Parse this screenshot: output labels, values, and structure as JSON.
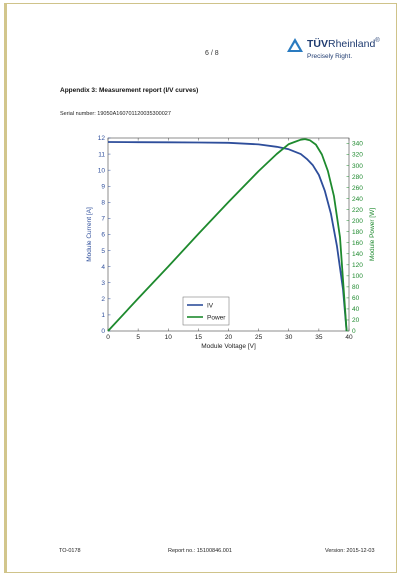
{
  "header": {
    "page_number": "6 / 8",
    "logo": {
      "brand_bold": "TÜV",
      "brand_rest": "Rheinland",
      "reg": "®",
      "tagline": "Precisely Right."
    }
  },
  "heading": "Appendix 3: Measurement report (I/V curves)",
  "serial": "Serial number: 19050A160701120035300027",
  "colors": {
    "iv": "#2e4e9b",
    "power": "#1e8a2e",
    "border": "#cfc38a",
    "logo": "#1f3b70"
  },
  "chart_data": {
    "type": "line",
    "xlabel": "Module Voltage [V]",
    "ylabel": "Module Current [A]",
    "y2label": "Module Power [W]",
    "xlim": [
      0,
      40
    ],
    "ylim": [
      0,
      12
    ],
    "y2lim": [
      0,
      350
    ],
    "x_ticks": [
      "0",
      "5",
      "10",
      "15",
      "20",
      "25",
      "30",
      "35",
      "40"
    ],
    "y_ticks": [
      "0",
      "1",
      "2",
      "3",
      "4",
      "5",
      "6",
      "7",
      "8",
      "9",
      "10",
      "11",
      "12"
    ],
    "y2_ticks": [
      "0",
      "20",
      "40",
      "60",
      "80",
      "100",
      "120",
      "140",
      "160",
      "180",
      "200",
      "220",
      "240",
      "260",
      "280",
      "300",
      "320",
      "340"
    ],
    "legend": [
      "IV",
      "Power"
    ],
    "legend_position": "bottom-center",
    "grid": false,
    "series": [
      {
        "name": "IV",
        "axis": "left",
        "x": [
          0,
          5,
          10,
          15,
          20,
          25,
          28,
          30,
          32,
          33,
          34,
          35,
          36,
          37,
          38,
          39,
          39.6
        ],
        "y": [
          11.75,
          11.74,
          11.73,
          11.72,
          11.7,
          11.6,
          11.45,
          11.3,
          11.0,
          10.7,
          10.3,
          9.7,
          8.7,
          7.3,
          5.3,
          2.6,
          0
        ]
      },
      {
        "name": "Power",
        "axis": "right",
        "x": [
          0,
          5,
          10,
          15,
          20,
          25,
          28,
          30,
          31,
          32,
          32.7,
          33.5,
          34.5,
          35.5,
          36.5,
          37.5,
          38.5,
          39.6
        ],
        "y": [
          0,
          59,
          117,
          176,
          234,
          290,
          321,
          339,
          343,
          347,
          348,
          346,
          338,
          320,
          290,
          245,
          170,
          0
        ]
      }
    ]
  },
  "footer": {
    "doc_id": "TO-0178",
    "report_no": "Report no.: 15100846.001",
    "version": "Version: 2015-12-03"
  }
}
